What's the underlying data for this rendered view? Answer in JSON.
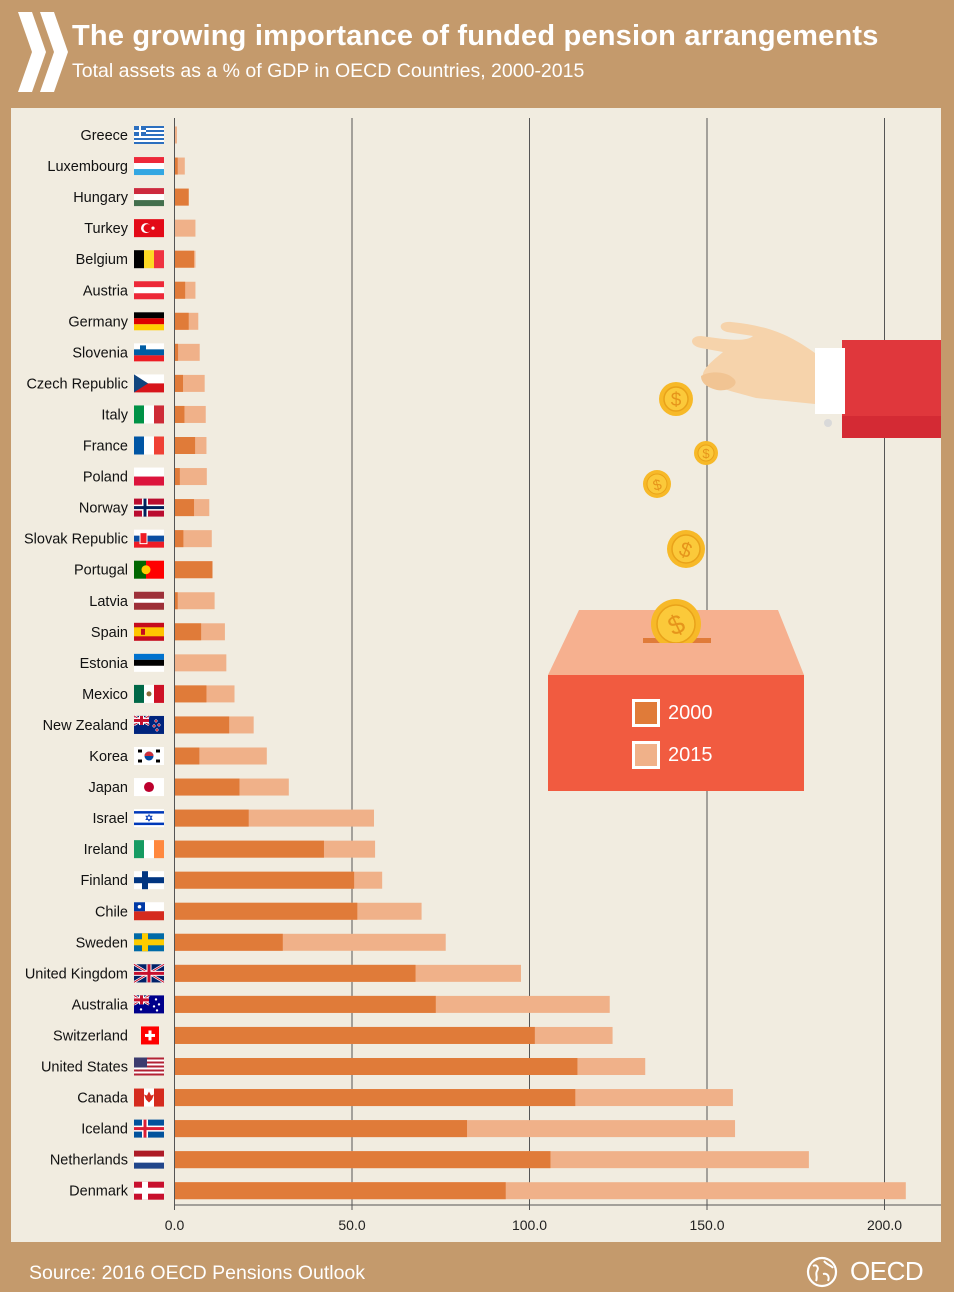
{
  "header": {
    "title": "The growing importance of funded pension arrangements",
    "subtitle": "Total assets as a % of GDP in OECD Countries, 2000-2015"
  },
  "footer": {
    "source": "Source: 2016 OECD Pensions Outlook",
    "brand": "OECD"
  },
  "legend": {
    "items": [
      {
        "label": "2000",
        "color": "#e07b39"
      },
      {
        "label": "2015",
        "color": "#f0b189"
      }
    ]
  },
  "colors": {
    "background": "#c49a6c",
    "panel": "#f1ece0",
    "bar_2000": "#e07b39",
    "bar_2015": "#f0b189",
    "legend_box": "#f15b40",
    "ballot_top": "#f6b08f"
  },
  "chart_data": {
    "type": "bar",
    "orientation": "horizontal",
    "xlim": [
      0,
      215
    ],
    "x_ticks": [
      "0.0",
      "50.0",
      "100.0",
      "150.0",
      "200.0"
    ],
    "grid": "vertical lines at 50, 100, 150, 200",
    "series": [
      {
        "name": "2000",
        "color": "#e07b39"
      },
      {
        "name": "2015",
        "color": "#f0b189"
      }
    ],
    "categories": [
      "Greece",
      "Luxembourg",
      "Hungary",
      "Turkey",
      "Belgium",
      "Austria",
      "Germany",
      "Slovenia",
      "Czech Republic",
      "Italy",
      "France",
      "Poland",
      "Norway",
      "Slovak Republic",
      "Portugal",
      "Latvia",
      "Spain",
      "Estonia",
      "Mexico",
      "New Zealand",
      "Korea",
      "Japan",
      "Israel",
      "Ireland",
      "Finland",
      "Chile",
      "Sweden",
      "United Kingdom",
      "Australia",
      "Switzerland",
      "United States",
      "Canada",
      "Iceland",
      "Netherlands",
      "Denmark"
    ],
    "values_2000": [
      0.0,
      0.9,
      4.0,
      0.0,
      5.5,
      3.0,
      4.0,
      1.0,
      2.4,
      2.8,
      5.8,
      1.5,
      5.5,
      2.5,
      10.7,
      0.9,
      7.5,
      0.0,
      9.0,
      15.4,
      7.0,
      18.3,
      20.9,
      42.1,
      50.6,
      51.5,
      30.5,
      67.9,
      73.6,
      101.5,
      113.5,
      112.9,
      82.4,
      105.9,
      93.3
    ],
    "values_2015": [
      0.7,
      2.9,
      4.0,
      5.9,
      5.9,
      5.9,
      6.7,
      7.1,
      8.5,
      8.8,
      9.0,
      9.1,
      9.8,
      10.5,
      10.7,
      11.3,
      14.2,
      14.6,
      16.9,
      22.3,
      26.0,
      32.2,
      56.2,
      56.5,
      58.5,
      69.6,
      76.4,
      97.6,
      122.6,
      123.4,
      132.6,
      157.3,
      157.9,
      178.7,
      206.0
    ]
  }
}
